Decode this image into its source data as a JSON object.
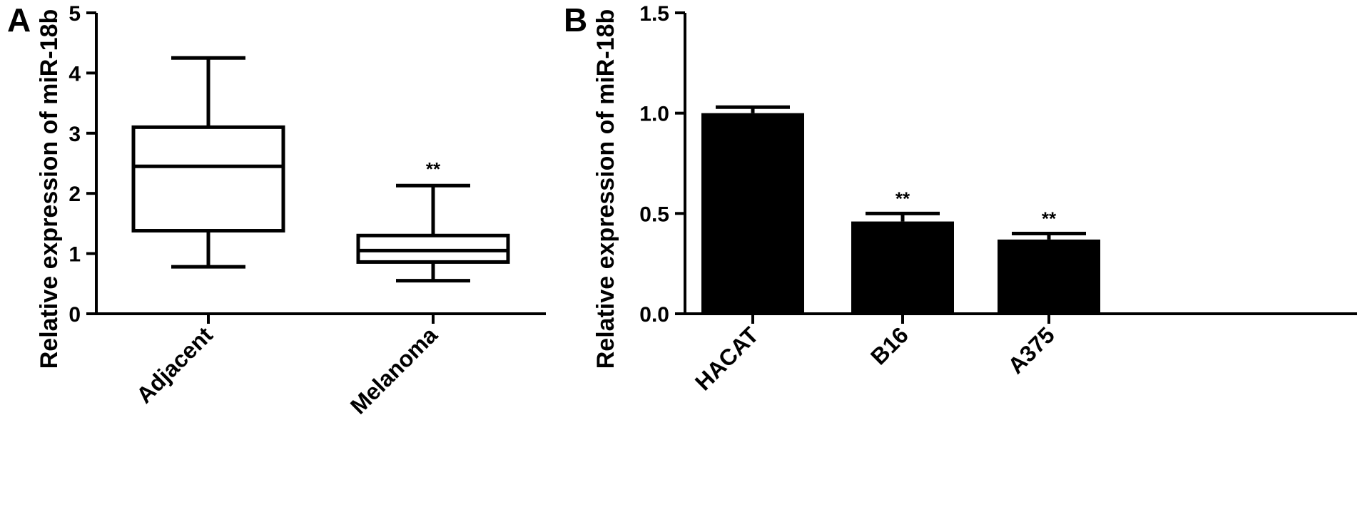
{
  "chart_data": [
    {
      "panel": "A",
      "type": "box",
      "ylabel": "Relative expression of miR-18b",
      "ylim": [
        0,
        5
      ],
      "yticks": [
        "0",
        "1",
        "2",
        "3",
        "4",
        "5"
      ],
      "categories": [
        "Adjacent",
        "Melanoma"
      ],
      "boxes": [
        {
          "category": "Adjacent",
          "min": 0.78,
          "q1": 1.38,
          "median": 2.45,
          "q3": 3.1,
          "max": 4.25,
          "annotation": ""
        },
        {
          "category": "Melanoma",
          "min": 0.55,
          "q1": 0.86,
          "median": 1.05,
          "q3": 1.3,
          "max": 2.13,
          "annotation": "**"
        }
      ]
    },
    {
      "panel": "B",
      "type": "bar",
      "ylabel": "Relative expression of miR-18b",
      "ylim": [
        0,
        1.5
      ],
      "yticks": [
        "0.0",
        "0.5",
        "1.0",
        "1.5"
      ],
      "categories": [
        "HACAT",
        "B16",
        "A375"
      ],
      "values": [
        1.0,
        0.46,
        0.37
      ],
      "errors": [
        0.03,
        0.04,
        0.03
      ],
      "annotations": [
        "",
        "**",
        "**"
      ],
      "color": "#000000"
    }
  ]
}
